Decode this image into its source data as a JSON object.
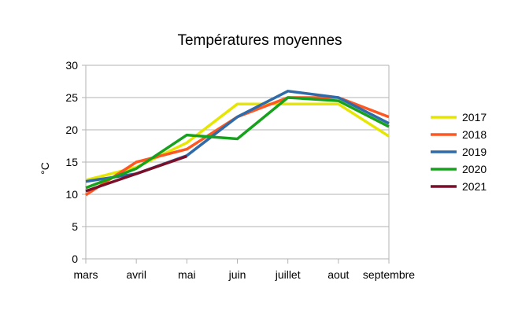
{
  "chart_data": {
    "type": "line",
    "title": "Températures moyennes",
    "xlabel": "",
    "ylabel": "°C",
    "categories": [
      "mars",
      "avril",
      "mai",
      "juin",
      "juillet",
      "aout",
      "septembre"
    ],
    "ylim": [
      0,
      30
    ],
    "yticks": [
      0,
      5,
      10,
      15,
      20,
      25,
      30
    ],
    "grid": true,
    "legend": "right",
    "series": [
      {
        "name": "2017",
        "color": "#e6e600",
        "values": [
          12.2,
          14.2,
          18.0,
          24.0,
          24.0,
          24.0,
          19.0
        ]
      },
      {
        "name": "2018",
        "color": "#ff5722",
        "values": [
          9.9,
          15.0,
          17.0,
          22.0,
          25.0,
          25.0,
          22.0
        ]
      },
      {
        "name": "2019",
        "color": "#2f6aa9",
        "values": [
          12.0,
          13.2,
          16.0,
          22.0,
          26.0,
          25.0,
          21.0
        ]
      },
      {
        "name": "2020",
        "color": "#17a21e",
        "values": [
          11.0,
          14.0,
          19.2,
          18.6,
          25.0,
          24.5,
          20.5
        ]
      },
      {
        "name": "2021",
        "color": "#7a0f2a",
        "values": [
          10.5,
          13.2,
          15.9,
          null,
          null,
          null,
          null
        ]
      }
    ]
  }
}
